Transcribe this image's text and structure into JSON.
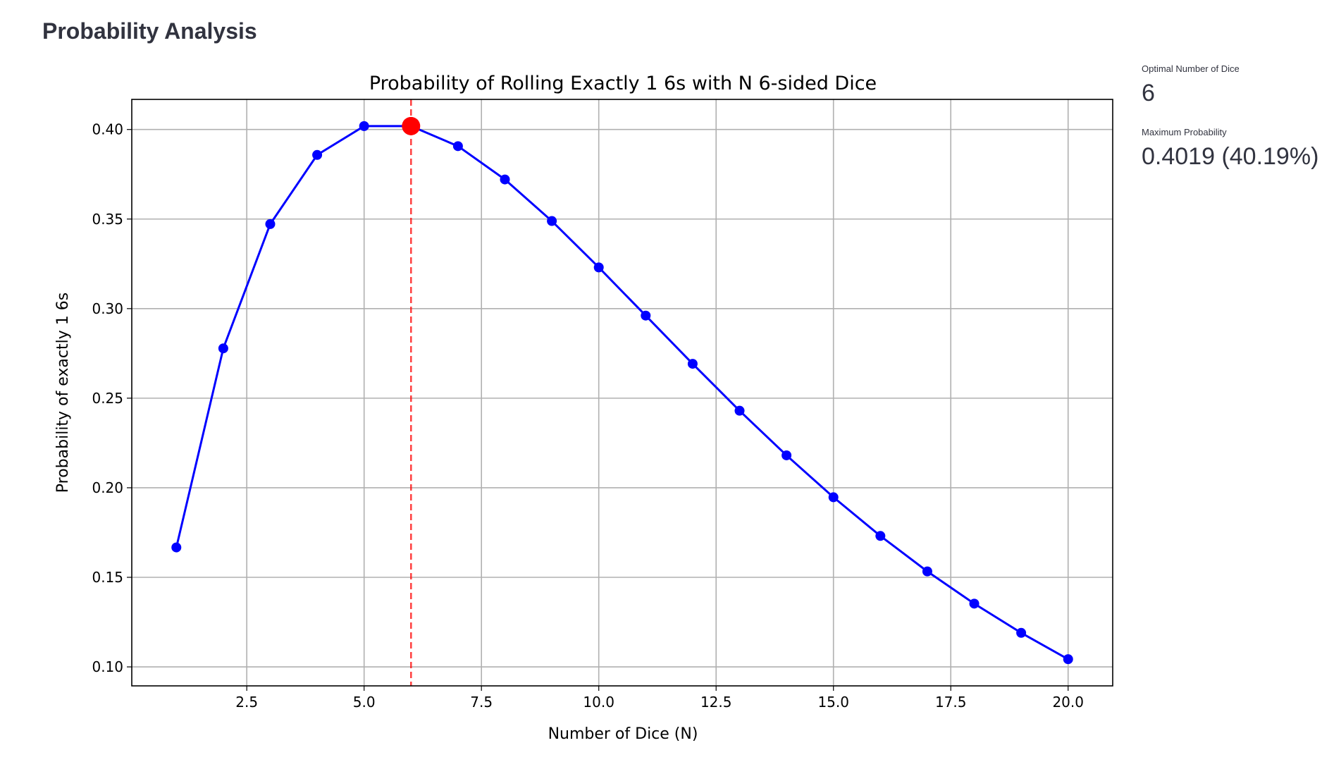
{
  "header": {
    "title": "Probability Analysis"
  },
  "metrics": [
    {
      "label": "Optimal Number of Dice",
      "value": "6"
    },
    {
      "label": "Maximum Probability",
      "value": "0.4019 (40.19%)"
    }
  ],
  "chart_data": {
    "type": "line",
    "title": "Probability of Rolling Exactly 1 6s with N 6-sided Dice",
    "xlabel": "Number of Dice (N)",
    "ylabel": "Probability of exactly 1 6s",
    "x": [
      1,
      2,
      3,
      4,
      5,
      6,
      7,
      8,
      9,
      10,
      11,
      12,
      13,
      14,
      15,
      16,
      17,
      18,
      19,
      20
    ],
    "values": [
      0.1667,
      0.2778,
      0.3472,
      0.3858,
      0.4019,
      0.4019,
      0.3907,
      0.3721,
      0.3489,
      0.323,
      0.2961,
      0.2692,
      0.243,
      0.2181,
      0.1947,
      0.1731,
      0.1533,
      0.1353,
      0.119,
      0.1043
    ],
    "xlim": [
      0.05,
      20.95
    ],
    "ylim": [
      0.0894,
      0.4168
    ],
    "xticks": [
      "2.5",
      "5.0",
      "7.5",
      "10.0",
      "12.5",
      "15.0",
      "17.5",
      "20.0"
    ],
    "yticks": [
      "0.10",
      "0.15",
      "0.20",
      "0.25",
      "0.30",
      "0.35",
      "0.40"
    ],
    "grid": true,
    "line_color": "#0000ff",
    "highlight": {
      "x": 6,
      "y": 0.4019,
      "color": "#ff0000"
    },
    "vline": {
      "x": 6,
      "color": "#ff0000",
      "style": "dashed"
    }
  }
}
